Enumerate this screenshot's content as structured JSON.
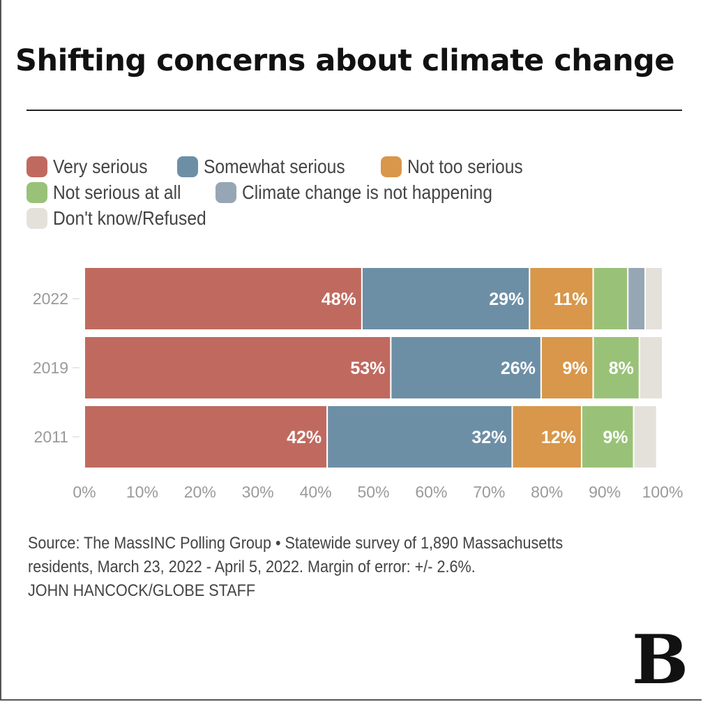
{
  "title": "Shifting concerns about climate change",
  "legend": [
    {
      "label": "Very serious",
      "color": "#c06a5f"
    },
    {
      "label": "Somewhat serious",
      "color": "#6d8fa6"
    },
    {
      "label": "Not too serious",
      "color": "#d8974a"
    },
    {
      "label": "Not serious at all",
      "color": "#99c278"
    },
    {
      "label": "Climate change is not happening",
      "color": "#97a6b4"
    },
    {
      "label": "Don't know/Refused",
      "color": "#e4e1db"
    }
  ],
  "source": {
    "line1": "Source: The MassINC Polling Group • Statewide survey of 1,890 Massachusetts",
    "line2": "residents, March 23, 2022 - April 5, 2022. Margin of error: +/- 2.6%.",
    "credit": "JOHN HANCOCK/GLOBE STAFF"
  },
  "logo": "B",
  "chart_data": {
    "type": "bar",
    "orientation": "horizontal",
    "stacked": true,
    "title": "Shifting concerns about climate change",
    "categories": [
      "2022",
      "2019",
      "2011"
    ],
    "series": [
      {
        "name": "Very serious",
        "color": "#c06a5f",
        "values": [
          48,
          53,
          42
        ],
        "labels": [
          "48%",
          "53%",
          "42%"
        ]
      },
      {
        "name": "Somewhat serious",
        "color": "#6d8fa6",
        "values": [
          29,
          26,
          32
        ],
        "labels": [
          "29%",
          "26%",
          "32%"
        ]
      },
      {
        "name": "Not too serious",
        "color": "#d8974a",
        "values": [
          11,
          9,
          12
        ],
        "labels": [
          "11%",
          "9%",
          "12%"
        ]
      },
      {
        "name": "Not serious at all",
        "color": "#99c278",
        "values": [
          6,
          8,
          9
        ],
        "labels": [
          "",
          "8%",
          "9%"
        ]
      },
      {
        "name": "Climate change is not happening",
        "color": "#97a6b4",
        "values": [
          3,
          0,
          0
        ],
        "labels": [
          "",
          "",
          ""
        ]
      },
      {
        "name": "Don't know/Refused",
        "color": "#e4e1db",
        "values": [
          3,
          4,
          4
        ],
        "labels": [
          "",
          "",
          ""
        ]
      }
    ],
    "xlim": [
      0,
      100
    ],
    "xticks": [
      "0%",
      "10%",
      "20%",
      "30%",
      "40%",
      "50%",
      "60%",
      "70%",
      "80%",
      "90%",
      "100%"
    ],
    "legend_position": "top"
  }
}
